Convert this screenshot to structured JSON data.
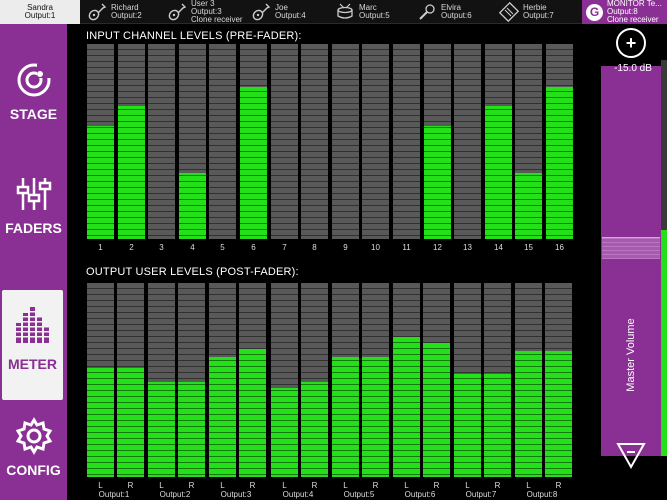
{
  "top_tabs": [
    {
      "name": "Sandra",
      "output": "Output:1",
      "icon": "none-icon",
      "active": true
    },
    {
      "name": "Richard",
      "output": "Output:2",
      "icon": "guitar-icon"
    },
    {
      "name": "User 3",
      "output": "Output:3",
      "sub": "Clone receiver",
      "icon": "guitar-icon"
    },
    {
      "name": "Joe",
      "output": "Output:4",
      "icon": "guitar-icon"
    },
    {
      "name": "Marc",
      "output": "Output:5",
      "icon": "drums-icon"
    },
    {
      "name": "Elvira",
      "output": "Output:6",
      "icon": "microphone-icon"
    },
    {
      "name": "Herbie",
      "output": "Output:7",
      "icon": "keyboard-icon"
    }
  ],
  "monitor_tab": {
    "name": "MONITOR Te...",
    "output": "Output:8",
    "sub": "Clone receiver",
    "logo": "G"
  },
  "nav": [
    {
      "label": "STAGE",
      "icon": "stage-icon"
    },
    {
      "label": "FADERS",
      "icon": "faders-icon"
    },
    {
      "label": "METER",
      "icon": "meter-icon",
      "active": true
    },
    {
      "label": "CONFIG",
      "icon": "gear-icon"
    }
  ],
  "input_section": {
    "title": "INPUT CHANNEL LEVELS (PRE-FADER):",
    "channels": [
      "1",
      "2",
      "3",
      "4",
      "5",
      "6",
      "7",
      "8",
      "9",
      "10",
      "11",
      "12",
      "13",
      "14",
      "15",
      "16"
    ],
    "levels": [
      0.58,
      0.68,
      0,
      0.34,
      0,
      0.78,
      0,
      0,
      0,
      0,
      0,
      0.58,
      0,
      0.68,
      0.34,
      0.78
    ]
  },
  "output_section": {
    "title": "OUTPUT USER LEVELS (POST-FADER):",
    "outputs": [
      {
        "label": "Output:1",
        "left": "L",
        "right": "R",
        "levels": [
          0.56,
          0.56
        ]
      },
      {
        "label": "Output:2",
        "left": "L",
        "right": "R",
        "levels": [
          0.49,
          0.49
        ]
      },
      {
        "label": "Output:3",
        "left": "L",
        "right": "R",
        "levels": [
          0.62,
          0.66
        ]
      },
      {
        "label": "Output:4",
        "left": "L",
        "right": "R",
        "levels": [
          0.46,
          0.49
        ]
      },
      {
        "label": "Output:5",
        "left": "L",
        "right": "R",
        "levels": [
          0.62,
          0.62
        ]
      },
      {
        "label": "Output:6",
        "left": "L",
        "right": "R",
        "levels": [
          0.72,
          0.69
        ]
      },
      {
        "label": "Output:7",
        "left": "L",
        "right": "R",
        "levels": [
          0.53,
          0.53
        ]
      },
      {
        "label": "Output:8",
        "left": "L",
        "right": "R",
        "levels": [
          0.65,
          0.65
        ]
      }
    ]
  },
  "master": {
    "value": "-15.0 dB",
    "label": "Master Volume",
    "plus": "+",
    "minus": "−",
    "fader_level": 0.58,
    "meter_level": 0.57
  },
  "colors": {
    "brand": "#8a2f93",
    "meter_fill": "#23e018",
    "meter_empty": "#595959"
  }
}
